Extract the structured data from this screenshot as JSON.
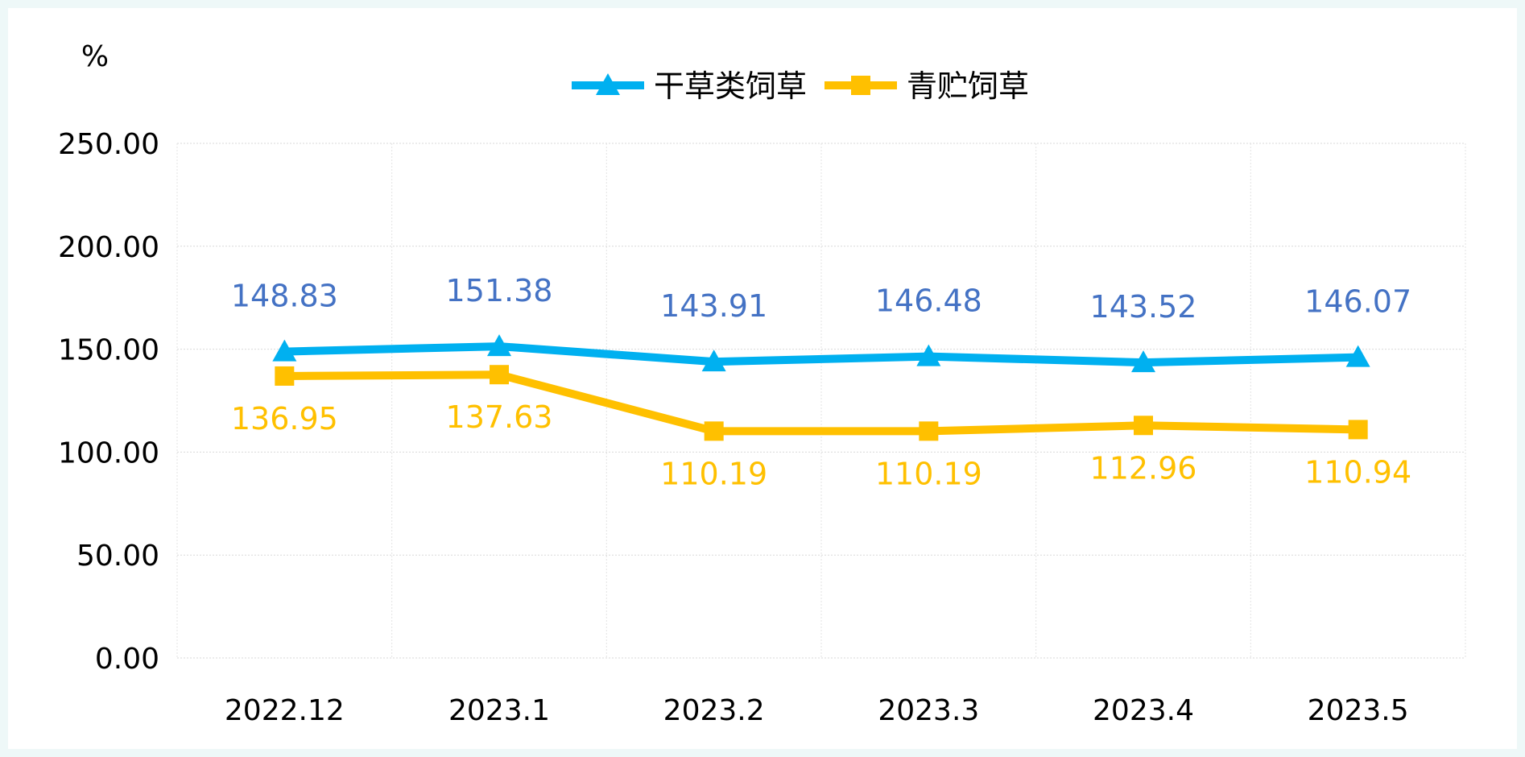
{
  "chart_data": {
    "type": "line",
    "unit_label": "%",
    "categories": [
      "2022.12",
      "2023.1",
      "2023.2",
      "2023.3",
      "2023.4",
      "2023.5"
    ],
    "ylim": [
      0,
      250
    ],
    "yticks": [
      "0.00",
      "50.00",
      "100.00",
      "150.00",
      "200.00",
      "250.00"
    ],
    "grid": true,
    "legend_position": "top-center",
    "series": [
      {
        "name": "干草类饲草",
        "marker": "triangle",
        "color": "#00b0f0",
        "label_color": "#4472c4",
        "label_position": "above",
        "values": [
          148.83,
          151.38,
          143.91,
          146.48,
          143.52,
          146.07
        ]
      },
      {
        "name": "青贮饲草",
        "marker": "square",
        "color": "#ffc000",
        "label_color": "#ffc000",
        "label_position": "below",
        "values": [
          136.95,
          137.63,
          110.19,
          110.19,
          112.96,
          110.94
        ]
      }
    ]
  }
}
